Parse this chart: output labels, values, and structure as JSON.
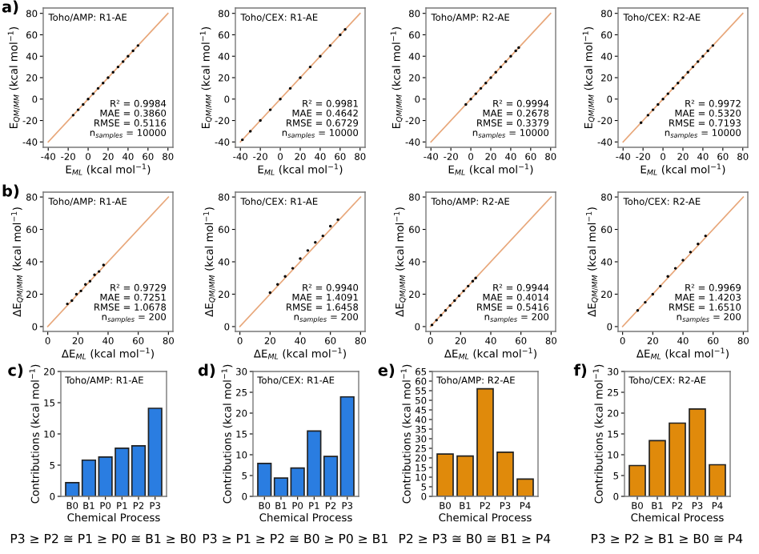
{
  "chart_data": [
    {
      "type": "scatter",
      "title": "Toho/AMP: R1-AE",
      "xlabel": "E$_{ML}$ (kcal mol$^{−1}$)",
      "ylabel": "E$_{QM/MM}$ (kcal mol$^{−1}$)",
      "xlim": [
        -45,
        85
      ],
      "ylim": [
        -45,
        85
      ],
      "xticks": [
        -40,
        -20,
        0,
        20,
        40,
        60,
        80
      ],
      "yticks": [
        -40,
        -20,
        0,
        20,
        40,
        60,
        80
      ],
      "annotations": [
        "R² = 0.9984\nMAE = 0.3860\nRMSE = 0.5116\nn$_{samples}$ = 10000",
        "a)"
      ],
      "series": [
        {
          "type": "scatter",
          "color": "#000000",
          "marker": "circle",
          "x": [
            -15,
            -10,
            -5,
            0,
            5,
            10,
            15,
            20,
            25,
            30,
            35,
            40,
            45,
            50
          ],
          "values": [
            -15,
            -10,
            -5,
            0,
            5,
            10,
            15,
            20,
            25,
            30,
            35,
            40,
            45,
            50
          ]
        },
        {
          "type": "line",
          "color": "#e8a77a",
          "x": [
            -40,
            80
          ],
          "values": [
            -40,
            80
          ]
        }
      ]
    },
    {
      "type": "scatter",
      "title": "Toho/CEX: R1-AE",
      "xlabel": "E$_{ML}$ (kcal mol$^{−1}$)",
      "ylabel": "E$_{QM/MM}$ (kcal mol$^{−1}$)",
      "xlim": [
        -45,
        85
      ],
      "ylim": [
        -45,
        85
      ],
      "xticks": [
        -40,
        -20,
        0,
        20,
        40,
        60,
        80
      ],
      "yticks": [
        -40,
        -20,
        0,
        20,
        40,
        60,
        80
      ],
      "annotations": [
        "R² = 0.9981\nMAE = 0.4642\nRMSE = 0.6729\nn$_{samples}$ = 10000"
      ],
      "series": [
        {
          "type": "scatter",
          "color": "#000000",
          "marker": "circle",
          "x": [
            -38,
            -30,
            -20,
            -10,
            0,
            10,
            20,
            30,
            40,
            50,
            60,
            65
          ],
          "values": [
            -38,
            -30,
            -20,
            -10,
            0,
            10,
            20,
            30,
            40,
            50,
            60,
            65
          ]
        },
        {
          "type": "line",
          "color": "#e8a77a",
          "x": [
            -40,
            80
          ],
          "values": [
            -40,
            80
          ]
        }
      ]
    },
    {
      "type": "scatter",
      "title": "Toho/AMP: R2-AE",
      "xlabel": "E$_{ML}$ (kcal mol$^{−1}$)",
      "ylabel": "E$_{QM/MM}$ (kcal mol$^{−1}$)",
      "xlim": [
        -45,
        85
      ],
      "ylim": [
        -45,
        85
      ],
      "xticks": [
        -40,
        -20,
        0,
        20,
        40,
        60,
        80
      ],
      "yticks": [
        -40,
        -20,
        0,
        20,
        40,
        60,
        80
      ],
      "annotations": [
        "R² = 0.9994\nMAE = 0.2678\nRMSE = 0.3379\nn$_{samples}$ = 10000"
      ],
      "series": [
        {
          "type": "scatter",
          "color": "#000000",
          "marker": "circle",
          "x": [
            -5,
            0,
            5,
            10,
            15,
            20,
            25,
            30,
            35,
            40,
            45,
            48
          ],
          "values": [
            -5,
            0,
            5,
            10,
            15,
            20,
            25,
            30,
            35,
            40,
            45,
            48
          ]
        },
        {
          "type": "line",
          "color": "#e8a77a",
          "x": [
            -40,
            80
          ],
          "values": [
            -40,
            80
          ]
        }
      ]
    },
    {
      "type": "scatter",
      "title": "Toho/CEX: R2-AE",
      "xlabel": "E$_{ML}$ (kcal mol$^{−1}$)",
      "ylabel": "E$_{QM/MM}$ (kcal mol$^{−1}$)",
      "xlim": [
        -45,
        85
      ],
      "ylim": [
        -45,
        85
      ],
      "xticks": [
        -40,
        -20,
        0,
        20,
        40,
        60,
        80
      ],
      "yticks": [
        -40,
        -20,
        0,
        20,
        40,
        60,
        80
      ],
      "annotations": [
        "R² = 0.9972\nMAE = 0.5320\nRMSE = 0.7193\nn$_{samples}$ = 10000"
      ],
      "series": [
        {
          "type": "scatter",
          "color": "#000000",
          "marker": "circle",
          "x": [
            -22,
            -15,
            -10,
            -5,
            0,
            5,
            10,
            15,
            20,
            25,
            30,
            35,
            40,
            45,
            50
          ],
          "values": [
            -22,
            -15,
            -10,
            -5,
            0,
            5,
            10,
            15,
            20,
            25,
            30,
            35,
            40,
            45,
            50
          ]
        },
        {
          "type": "line",
          "color": "#e8a77a",
          "x": [
            -40,
            80
          ],
          "values": [
            -40,
            80
          ]
        }
      ]
    },
    {
      "type": "scatter",
      "title": "Toho/AMP: R1-AE",
      "xlabel": "ΔE$_{ML}$ (kcal mol$^{−1}$)",
      "ylabel": "ΔE$_{QM/MM}$ (kcal mol$^{−1}$)",
      "xlim": [
        -3,
        83
      ],
      "ylim": [
        -3,
        83
      ],
      "xticks": [
        0,
        20,
        40,
        60,
        80
      ],
      "yticks": [
        0,
        20,
        40,
        60,
        80
      ],
      "annotations": [
        "R² = 0.9729\nMAE = 0.7251\nRMSE = 1.0678\nn$_{samples}$ = 200",
        "b)"
      ],
      "series": [
        {
          "type": "scatter",
          "color": "#000000",
          "marker": "circle",
          "x": [
            13,
            16,
            19,
            22,
            25,
            28,
            31,
            34,
            37
          ],
          "values": [
            14,
            16,
            20,
            22,
            26,
            28,
            32,
            34,
            38
          ]
        },
        {
          "type": "line",
          "color": "#e8a77a",
          "x": [
            0,
            80
          ],
          "values": [
            0,
            80
          ]
        }
      ]
    },
    {
      "type": "scatter",
      "title": "Toho/CEX: R1-AE",
      "xlabel": "ΔE$_{ML}$ (kcal mol$^{−1}$)",
      "ylabel": "ΔE$_{QM/MM}$ (kcal mol$^{−1}$)",
      "xlim": [
        -3,
        83
      ],
      "ylim": [
        -3,
        83
      ],
      "xticks": [
        0,
        20,
        40,
        60,
        80
      ],
      "yticks": [
        0,
        20,
        40,
        60,
        80
      ],
      "annotations": [
        "R² = 0.9940\nMAE = 1.4091\nRMSE = 1.6458\nn$_{samples}$ = 200"
      ],
      "series": [
        {
          "type": "scatter",
          "color": "#000000",
          "marker": "circle",
          "x": [
            20,
            25,
            30,
            35,
            40,
            45,
            50,
            55,
            60,
            65
          ],
          "values": [
            21,
            26,
            31,
            36,
            42,
            47,
            52,
            56,
            62,
            66
          ]
        },
        {
          "type": "line",
          "color": "#e8a77a",
          "x": [
            0,
            80
          ],
          "values": [
            0,
            80
          ]
        }
      ]
    },
    {
      "type": "scatter",
      "title": "Toho/AMP: R2-AE",
      "xlabel": "ΔE$_{ML}$ (kcal mol$^{−1}$)",
      "ylabel": "ΔE$_{QM/MM}$ (kcal mol$^{−1}$)",
      "xlim": [
        -3,
        83
      ],
      "ylim": [
        -3,
        83
      ],
      "xticks": [
        0,
        20,
        40,
        60,
        80
      ],
      "yticks": [
        0,
        20,
        40,
        60,
        80
      ],
      "annotations": [
        "R² = 0.9944\nMAE = 0.4014\nRMSE = 0.5416\nn$_{samples}$ = 200"
      ],
      "series": [
        {
          "type": "scatter",
          "color": "#000000",
          "marker": "circle",
          "x": [
            1,
            4,
            7,
            10,
            13,
            16,
            19,
            22,
            25,
            28,
            30
          ],
          "values": [
            1,
            4,
            7,
            10,
            13,
            16,
            19,
            22,
            25,
            28,
            30
          ]
        },
        {
          "type": "line",
          "color": "#e8a77a",
          "x": [
            0,
            80
          ],
          "values": [
            0,
            80
          ]
        }
      ]
    },
    {
      "type": "scatter",
      "title": "Toho/CEX: R2-AE",
      "xlabel": "ΔE$_{ML}$ (kcal mol$^{−1}$)",
      "ylabel": "ΔE$_{QM/MM}$ (kcal mol$^{−1}$)",
      "xlim": [
        -3,
        83
      ],
      "ylim": [
        -3,
        83
      ],
      "xticks": [
        0,
        20,
        40,
        60,
        80
      ],
      "yticks": [
        0,
        20,
        40,
        60,
        80
      ],
      "annotations": [
        "R² = 0.9969\nMAE = 1.4203\nRMSE = 1.6510\nn$_{samples}$ = 200"
      ],
      "series": [
        {
          "type": "scatter",
          "color": "#000000",
          "marker": "circle",
          "x": [
            10,
            15,
            20,
            25,
            30,
            35,
            40,
            45,
            50,
            55
          ],
          "values": [
            10,
            15,
            20,
            25,
            31,
            36,
            41,
            46,
            51,
            56
          ]
        },
        {
          "type": "line",
          "color": "#e8a77a",
          "x": [
            0,
            80
          ],
          "values": [
            0,
            80
          ]
        }
      ]
    },
    {
      "type": "bar",
      "title": "Toho/AMP: R1-AE",
      "xlabel": "Chemical Process",
      "ylabel": "Contributions (kcal mol$^{−1}$)",
      "categories": [
        "B0",
        "B1",
        "P0",
        "P1",
        "P2",
        "P3"
      ],
      "values": [
        2.2,
        5.8,
        6.3,
        7.7,
        8.1,
        14.1
      ],
      "color": "#2a7de1",
      "ylim": [
        0,
        20
      ],
      "yticks": [
        0,
        5,
        10,
        15,
        20
      ],
      "annotations": [
        "c)",
        "P3 ≥ P2 ≅ P1 ≥ P0 ≅ B1 ≥ B0"
      ]
    },
    {
      "type": "bar",
      "title": "Toho/CEX: R1-AE",
      "xlabel": "Chemical Process",
      "ylabel": "Contributions (kcal mol$^{−1}$)",
      "categories": [
        "B0",
        "B1",
        "P0",
        "P1",
        "P2",
        "P3"
      ],
      "values": [
        7.9,
        4.4,
        6.8,
        15.7,
        9.6,
        23.9
      ],
      "color": "#2a7de1",
      "ylim": [
        0,
        30
      ],
      "yticks": [
        0,
        5,
        10,
        15,
        20,
        25,
        30
      ],
      "annotations": [
        "d)",
        "P3 ≥ P1 ≥ P2 ≅ B0 ≥ P0 ≥ B1"
      ]
    },
    {
      "type": "bar",
      "title": "Toho/AMP: R2-AE",
      "xlabel": "Chemical Process",
      "ylabel": "Contributions (kcal mol$^{−1}$)",
      "categories": [
        "B0",
        "B1",
        "P2",
        "P3",
        "P4"
      ],
      "values": [
        22,
        21,
        56,
        23,
        9
      ],
      "color": "#e08a0b",
      "ylim": [
        0,
        65
      ],
      "yticks": [
        0,
        5,
        10,
        15,
        20,
        25,
        30,
        35,
        40,
        45,
        50,
        55,
        60,
        65
      ],
      "annotations": [
        "e)",
        "P2 ≥ P3 ≅ B0 ≅ B1 ≥ P4"
      ]
    },
    {
      "type": "bar",
      "title": "Toho/CEX: R2-AE",
      "xlabel": "Chemical Process",
      "ylabel": "Contributions (kcal mol$^{−1}$)",
      "categories": [
        "B0",
        "B1",
        "P2",
        "P3",
        "P4"
      ],
      "values": [
        7.4,
        13.4,
        17.6,
        21,
        7.6
      ],
      "color": "#e08a0b",
      "ylim": [
        0,
        30
      ],
      "yticks": [
        0,
        5,
        10,
        15,
        20,
        25,
        30
      ],
      "annotations": [
        "f)",
        "P3 ≥ P2 ≥ B1 ≥ B0 ≅ P4"
      ]
    }
  ]
}
